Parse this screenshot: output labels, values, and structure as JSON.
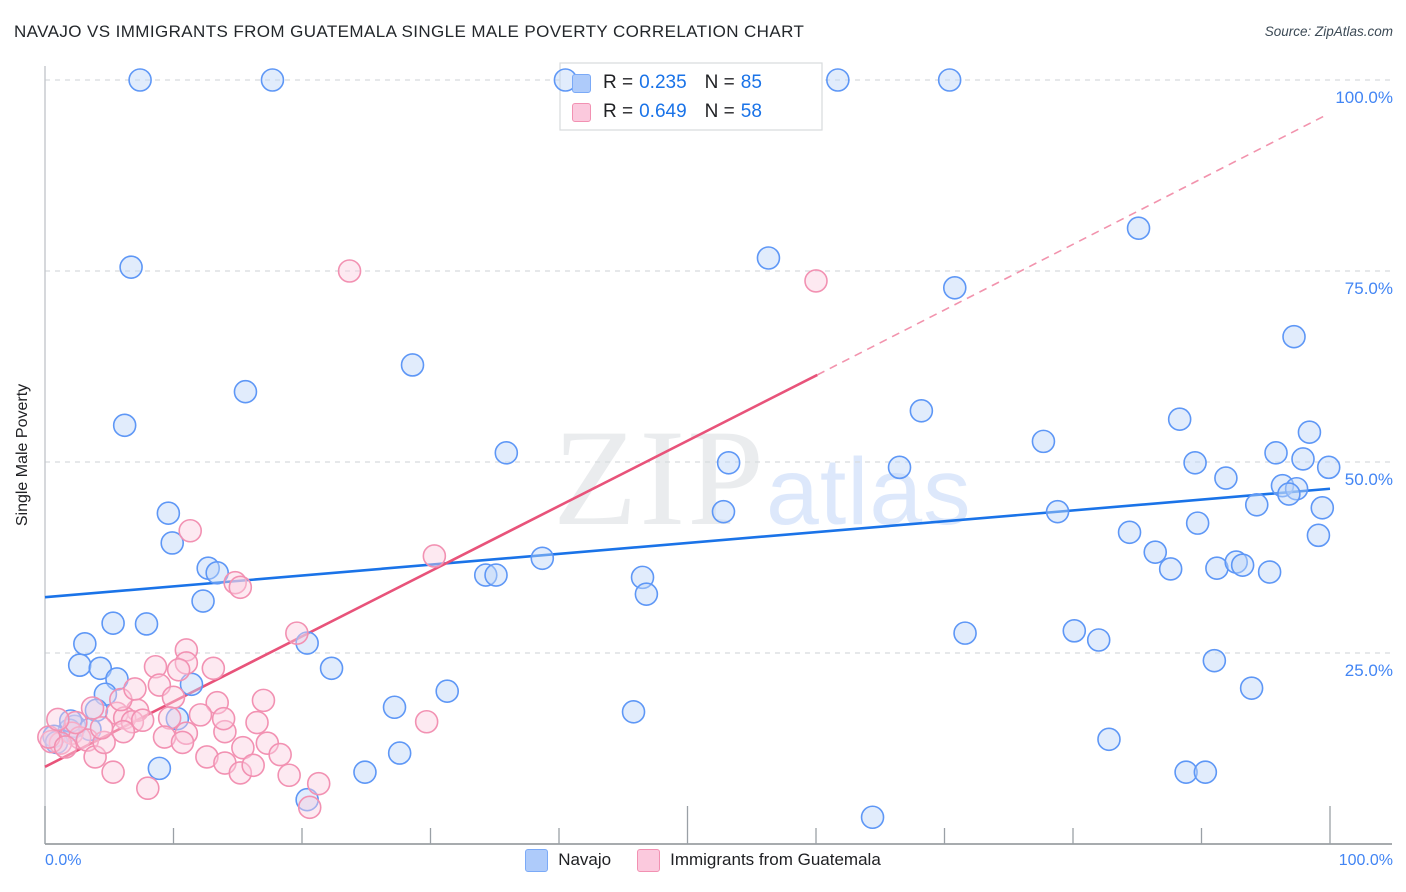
{
  "header": {
    "source": "Source: ZipAtlas.com"
  },
  "legend_box": {
    "rows": [
      {
        "series": "Navajo",
        "r_label": "R =",
        "r_value": "0.235",
        "n_label": "N =",
        "n_value": "85"
      },
      {
        "series": "Immigrants from Guatemala",
        "r_label": "R =",
        "r_value": "0.649",
        "n_label": "N =",
        "n_value": "58"
      }
    ]
  },
  "axes": {
    "y_right_labels": [
      "100.0%",
      "75.0%",
      "50.0%",
      "25.0%"
    ],
    "x_left_label": "0.0%",
    "x_right_label": "100.0%"
  },
  "bottom_legend": [
    {
      "label": "Navajo",
      "swatch": "blue"
    },
    {
      "label": "Immigrants from Guatemala",
      "swatch": "pink"
    }
  ],
  "watermark": {
    "zip": "ZIP",
    "atlas": "atlas"
  },
  "colors": {
    "navajo_fill": "#bcd4f8",
    "navajo_stroke": "#5e97f6",
    "guatemala_fill": "#fbcfe0",
    "guatemala_stroke": "#f291b2",
    "navajo_trend": "#1a73e8",
    "guatemala_trend": "#e8537a",
    "guatemala_trend_dashed": "#f293ad",
    "gridline": "#d8dbde",
    "axis": "#8a8f94",
    "tick": "#9aa0a6",
    "label_blue": "#4285f4"
  },
  "chart_data": {
    "type": "scatter",
    "title": "NAVAJO VS IMMIGRANTS FROM GUATEMALA SINGLE MALE POVERTY CORRELATION CHART",
    "ylabel": "Single Male Poverty",
    "xlabel": "",
    "xlim": [
      0,
      100
    ],
    "ylim": [
      0,
      100
    ],
    "x_tick_interval": 10,
    "y_gridlines": [
      25,
      50,
      75,
      100
    ],
    "grid": "dashed-horizontal",
    "legend_position": "top-center and bottom-center",
    "series": [
      {
        "name": "Navajo",
        "R": 0.235,
        "N": 85,
        "points": [
          [
            7.4,
            100
          ],
          [
            17.7,
            100
          ],
          [
            40.5,
            100
          ],
          [
            61.7,
            100
          ],
          [
            70.4,
            100
          ],
          [
            6.7,
            75.5
          ],
          [
            56.3,
            76.7
          ],
          [
            70.8,
            72.8
          ],
          [
            85.1,
            80.6
          ],
          [
            6.2,
            54.8
          ],
          [
            15.6,
            59.2
          ],
          [
            28.6,
            62.7
          ],
          [
            35.9,
            51.2
          ],
          [
            53.2,
            49.9
          ],
          [
            66.5,
            49.3
          ],
          [
            52.8,
            43.5
          ],
          [
            68.2,
            56.7
          ],
          [
            9.6,
            43.3
          ],
          [
            9.9,
            39.4
          ],
          [
            12.7,
            36.1
          ],
          [
            13.4,
            35.5
          ],
          [
            12.3,
            31.8
          ],
          [
            5.3,
            28.9
          ],
          [
            7.9,
            28.8
          ],
          [
            2.7,
            23.4
          ],
          [
            4.3,
            23.0
          ],
          [
            5.6,
            21.6
          ],
          [
            11.4,
            20.9
          ],
          [
            4.7,
            19.6
          ],
          [
            4.0,
            17.5
          ],
          [
            2.3,
            15.4
          ],
          [
            1.9,
            14.9
          ],
          [
            10.3,
            16.4
          ],
          [
            8.9,
            9.9
          ],
          [
            0.7,
            14.1
          ],
          [
            0.9,
            13.3
          ],
          [
            2.0,
            16.1
          ],
          [
            3.5,
            15.0
          ],
          [
            20.4,
            5.8
          ],
          [
            22.3,
            23.0
          ],
          [
            27.2,
            17.9
          ],
          [
            27.6,
            11.9
          ],
          [
            24.9,
            9.4
          ],
          [
            31.3,
            20.0
          ],
          [
            20.4,
            26.3
          ],
          [
            34.3,
            35.2
          ],
          [
            35.1,
            35.2
          ],
          [
            38.7,
            37.4
          ],
          [
            46.5,
            34.9
          ],
          [
            46.8,
            32.7
          ],
          [
            45.8,
            17.3
          ],
          [
            64.4,
            3.5
          ],
          [
            97.2,
            66.4
          ],
          [
            88.3,
            55.6
          ],
          [
            77.7,
            52.7
          ],
          [
            98.4,
            53.9
          ],
          [
            89.5,
            49.9
          ],
          [
            95.8,
            51.2
          ],
          [
            97.9,
            50.4
          ],
          [
            99.9,
            49.3
          ],
          [
            91.9,
            47.9
          ],
          [
            96.3,
            46.9
          ],
          [
            97.4,
            46.5
          ],
          [
            94.3,
            44.4
          ],
          [
            78.8,
            43.5
          ],
          [
            84.4,
            40.8
          ],
          [
            89.7,
            42.0
          ],
          [
            86.4,
            38.2
          ],
          [
            99.4,
            44.0
          ],
          [
            99.1,
            40.4
          ],
          [
            87.6,
            36.0
          ],
          [
            91.2,
            36.1
          ],
          [
            92.7,
            36.9
          ],
          [
            95.3,
            35.6
          ],
          [
            96.8,
            45.8
          ],
          [
            93.2,
            36.5
          ],
          [
            71.6,
            27.6
          ],
          [
            80.1,
            27.9
          ],
          [
            82.0,
            26.7
          ],
          [
            91.0,
            24.0
          ],
          [
            93.9,
            20.4
          ],
          [
            82.8,
            13.7
          ],
          [
            88.8,
            9.4
          ],
          [
            90.3,
            9.4
          ],
          [
            3.1,
            26.2
          ]
        ]
      },
      {
        "name": "Immigrants from Guatemala",
        "R": 0.649,
        "N": 58,
        "points": [
          [
            23.7,
            75.0
          ],
          [
            60.0,
            73.7
          ],
          [
            11.3,
            41.0
          ],
          [
            14.8,
            34.2
          ],
          [
            15.2,
            33.6
          ],
          [
            30.3,
            37.7
          ],
          [
            29.7,
            16.0
          ],
          [
            19.6,
            27.6
          ],
          [
            11.0,
            25.4
          ],
          [
            8.6,
            23.2
          ],
          [
            11.0,
            23.7
          ],
          [
            10.4,
            22.8
          ],
          [
            13.1,
            23.0
          ],
          [
            8.9,
            20.8
          ],
          [
            10.0,
            19.2
          ],
          [
            7.2,
            17.5
          ],
          [
            3.7,
            17.8
          ],
          [
            5.6,
            17.1
          ],
          [
            6.2,
            16.5
          ],
          [
            6.8,
            16.0
          ],
          [
            7.6,
            16.2
          ],
          [
            9.7,
            16.5
          ],
          [
            6.1,
            14.7
          ],
          [
            2.1,
            14.5
          ],
          [
            2.7,
            13.9
          ],
          [
            3.3,
            13.6
          ],
          [
            1.2,
            13.2
          ],
          [
            0.5,
            13.4
          ],
          [
            11.0,
            14.5
          ],
          [
            13.4,
            18.5
          ],
          [
            14.0,
            14.7
          ],
          [
            15.4,
            12.6
          ],
          [
            12.6,
            11.4
          ],
          [
            14.0,
            10.6
          ],
          [
            15.2,
            9.3
          ],
          [
            16.2,
            10.3
          ],
          [
            17.3,
            13.2
          ],
          [
            3.9,
            11.4
          ],
          [
            5.3,
            9.4
          ],
          [
            8.0,
            7.3
          ],
          [
            17.0,
            18.8
          ],
          [
            20.6,
            4.8
          ],
          [
            0.3,
            14.0
          ],
          [
            1.6,
            12.7
          ],
          [
            4.6,
            13.3
          ],
          [
            2.4,
            15.9
          ],
          [
            4.4,
            15.2
          ],
          [
            5.9,
            18.9
          ],
          [
            1.0,
            16.3
          ],
          [
            7.0,
            20.3
          ],
          [
            12.1,
            16.9
          ],
          [
            9.3,
            14.0
          ],
          [
            13.9,
            16.4
          ],
          [
            10.7,
            13.3
          ],
          [
            16.5,
            15.9
          ],
          [
            18.3,
            11.7
          ],
          [
            19.0,
            9.0
          ],
          [
            21.3,
            7.9
          ]
        ]
      }
    ],
    "trend_lines": [
      {
        "series": "Navajo",
        "style": "solid",
        "from": [
          0,
          32.3
        ],
        "to": [
          100,
          46.5
        ]
      },
      {
        "series": "Immigrants from Guatemala",
        "style": "solid",
        "from": [
          0,
          10.1
        ],
        "to": [
          60.1,
          61.4
        ]
      },
      {
        "series": "Immigrants from Guatemala",
        "style": "dashed",
        "from": [
          60.1,
          61.4
        ],
        "to": [
          99.8,
          95.5
        ]
      }
    ]
  }
}
